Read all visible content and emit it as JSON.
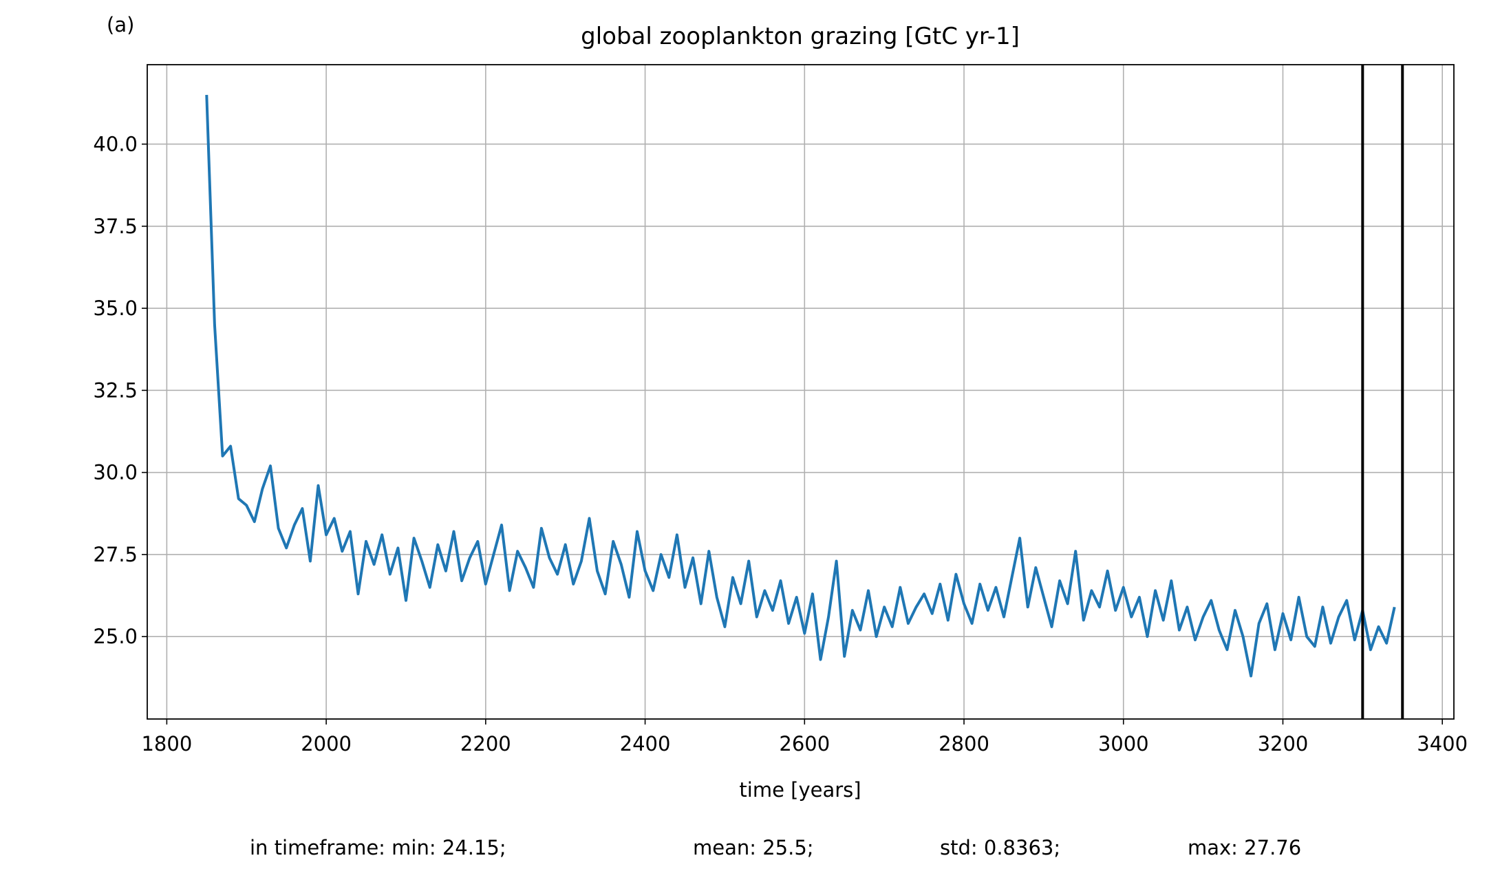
{
  "chart_data": {
    "type": "line",
    "panel_label": "(a)",
    "title": "global zooplankton grazing [GtC yr-1]",
    "x_label": "time [years]",
    "stats": [
      "in timeframe: min: 24.15;",
      "mean: 25.5;",
      "std: 0.8363;",
      "max: 27.76"
    ],
    "x": [
      1850,
      1860,
      1870,
      1880,
      1890,
      1900,
      1910,
      1920,
      1930,
      1940,
      1950,
      1960,
      1970,
      1980,
      1990,
      2000,
      2010,
      2020,
      2030,
      2040,
      2050,
      2060,
      2070,
      2080,
      2090,
      2100,
      2110,
      2120,
      2130,
      2140,
      2150,
      2160,
      2170,
      2180,
      2190,
      2200,
      2210,
      2220,
      2230,
      2240,
      2250,
      2260,
      2270,
      2280,
      2290,
      2300,
      2310,
      2320,
      2330,
      2340,
      2350,
      2360,
      2370,
      2380,
      2390,
      2400,
      2410,
      2420,
      2430,
      2440,
      2450,
      2460,
      2470,
      2480,
      2490,
      2500,
      2510,
      2520,
      2530,
      2540,
      2550,
      2560,
      2570,
      2580,
      2590,
      2600,
      2610,
      2620,
      2630,
      2640,
      2650,
      2660,
      2670,
      2680,
      2690,
      2700,
      2710,
      2720,
      2730,
      2740,
      2750,
      2760,
      2770,
      2780,
      2790,
      2800,
      2810,
      2820,
      2830,
      2840,
      2850,
      2860,
      2870,
      2880,
      2890,
      2900,
      2910,
      2920,
      2930,
      2940,
      2950,
      2960,
      2970,
      2980,
      2990,
      3000,
      3010,
      3020,
      3030,
      3040,
      3050,
      3060,
      3070,
      3080,
      3090,
      3100,
      3110,
      3120,
      3130,
      3140,
      3150,
      3160,
      3170,
      3180,
      3190,
      3200,
      3210,
      3220,
      3230,
      3240,
      3250,
      3260,
      3270,
      3280,
      3290,
      3300,
      3310,
      3320,
      3330,
      3340
    ],
    "series": [
      {
        "color": "#1f77b4",
        "values": [
          41.5,
          34.5,
          30.5,
          30.8,
          29.2,
          29.0,
          28.5,
          29.5,
          30.2,
          28.3,
          27.7,
          28.4,
          28.9,
          27.3,
          29.6,
          28.1,
          28.6,
          27.6,
          28.2,
          26.3,
          27.9,
          27.2,
          28.1,
          26.9,
          27.7,
          26.1,
          28.0,
          27.3,
          26.5,
          27.8,
          27.0,
          28.2,
          26.7,
          27.4,
          27.9,
          26.6,
          27.5,
          28.4,
          26.4,
          27.6,
          27.1,
          26.5,
          28.3,
          27.4,
          26.9,
          27.8,
          26.6,
          27.3,
          28.6,
          27.0,
          26.3,
          27.9,
          27.2,
          26.2,
          28.2,
          27.0,
          26.4,
          27.5,
          26.8,
          28.1,
          26.5,
          27.4,
          26.0,
          27.6,
          26.2,
          25.3,
          26.8,
          26.0,
          27.3,
          25.6,
          26.4,
          25.8,
          26.7,
          25.4,
          26.2,
          25.1,
          26.3,
          24.3,
          25.6,
          27.3,
          24.4,
          25.8,
          25.2,
          26.4,
          25.0,
          25.9,
          25.3,
          26.5,
          25.4,
          25.9,
          26.3,
          25.7,
          26.6,
          25.5,
          26.9,
          26.0,
          25.4,
          26.6,
          25.8,
          26.5,
          25.6,
          26.8,
          28.0,
          25.9,
          27.1,
          26.2,
          25.3,
          26.7,
          26.0,
          27.6,
          25.5,
          26.4,
          25.9,
          27.0,
          25.8,
          26.5,
          25.6,
          26.2,
          25.0,
          26.4,
          25.5,
          26.7,
          25.2,
          25.9,
          24.9,
          25.6,
          26.1,
          25.2,
          24.6,
          25.8,
          25.0,
          23.8,
          25.4,
          26.0,
          24.6,
          25.7,
          24.9,
          26.2,
          25.0,
          24.7,
          25.9,
          24.8,
          25.6,
          26.1,
          24.9,
          25.8,
          24.6,
          25.3,
          24.8,
          25.9
        ]
      }
    ],
    "vlines": [
      3300,
      3350
    ],
    "vline_color": "#000000",
    "xlim": [
      1775.5,
      3414.5
    ],
    "ylim": [
      22.49,
      42.42
    ],
    "xticks": [
      1800,
      2000,
      2200,
      2400,
      2600,
      2800,
      3000,
      3200,
      3400
    ],
    "yticks": [
      {
        "value": 25,
        "label": "25.0"
      },
      27.5,
      {
        "value": 30,
        "label": "30.0"
      },
      32.5,
      {
        "value": 35,
        "label": "35.0"
      },
      37.5,
      {
        "value": 40,
        "label": "40.0"
      }
    ],
    "grid": true
  }
}
